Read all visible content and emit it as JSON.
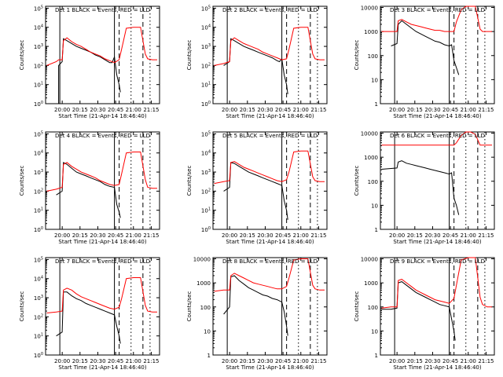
{
  "colors": {
    "events": "#000000",
    "lld": "#ff0000",
    "axes": "#000000"
  },
  "legend_text": {
    "prefix": "Det",
    "black": "BLACK = Events",
    "red": "RED = LLD"
  },
  "xlabel": "Start Time (21-Apr-14 18:46:40)",
  "chart_data": [
    {
      "type": "line",
      "title": "Det 1",
      "ylabel": "Counts/sec",
      "ylog": true,
      "ytick_style": "exp",
      "yticks": [
        0,
        1,
        2,
        3,
        4,
        5
      ],
      "ylim": [
        0,
        5.1
      ],
      "xticks": [
        "20:00",
        "20:15",
        "20:30",
        "20:45",
        "21:00",
        "21:15"
      ],
      "series": [
        {
          "name": "Events",
          "x_min": [
            -5,
            -3,
            -3,
            0,
            1,
            4,
            8,
            12,
            16,
            20,
            24,
            28,
            32,
            36,
            40,
            42,
            44,
            46,
            48,
            49
          ],
          "y_log": [
            0,
            0,
            2.0,
            2.2,
            3.4,
            3.3,
            3.15,
            3.0,
            2.9,
            2.8,
            2.7,
            2.55,
            2.45,
            2.3,
            2.15,
            2.15,
            2.45,
            1.5,
            1.0,
            0.6
          ]
        },
        {
          "name": "LLD",
          "x_min": [
            -13,
            -5,
            -3,
            0,
            1,
            4,
            8,
            12,
            16,
            20,
            24,
            28,
            32,
            36,
            40,
            44,
            48,
            50,
            54,
            60,
            66,
            70,
            72,
            76,
            80
          ],
          "y_log": [
            2.0,
            2.2,
            2.3,
            2.3,
            3.3,
            3.45,
            3.25,
            3.1,
            3.0,
            2.85,
            2.7,
            2.6,
            2.5,
            2.35,
            2.25,
            2.15,
            2.3,
            2.85,
            3.95,
            4.0,
            4.0,
            2.6,
            2.35,
            2.3,
            2.3
          ]
        }
      ]
    },
    {
      "type": "line",
      "title": "Det 2",
      "ylabel": "Counts/sec",
      "ylog": true,
      "ytick_style": "exp",
      "yticks": [
        0,
        1,
        2,
        3,
        4,
        5
      ],
      "ylim": [
        0,
        5.1
      ],
      "xticks": [
        "20:00",
        "20:15",
        "20:30",
        "20:45",
        "21:00",
        "21:15"
      ],
      "series": [
        {
          "name": "Events",
          "x_min": [
            -5,
            0,
            1,
            4,
            8,
            12,
            16,
            20,
            24,
            28,
            32,
            36,
            40,
            42,
            44,
            46,
            48,
            49
          ],
          "y_log": [
            2.0,
            2.2,
            3.4,
            3.3,
            3.15,
            3.0,
            2.9,
            2.8,
            2.7,
            2.6,
            2.5,
            2.4,
            2.25,
            2.2,
            2.35,
            1.5,
            1.0,
            0.5
          ]
        },
        {
          "name": "LLD",
          "x_min": [
            -13,
            -5,
            0,
            1,
            4,
            8,
            12,
            16,
            20,
            24,
            28,
            32,
            36,
            40,
            44,
            48,
            50,
            54,
            60,
            66,
            70,
            72,
            76,
            80
          ],
          "y_log": [
            2.0,
            2.1,
            2.2,
            3.3,
            3.45,
            3.3,
            3.15,
            3.05,
            2.95,
            2.85,
            2.7,
            2.6,
            2.5,
            2.4,
            2.3,
            2.35,
            2.85,
            3.95,
            4.0,
            4.0,
            2.6,
            2.35,
            2.3,
            2.3
          ]
        }
      ]
    },
    {
      "type": "line",
      "title": "Det 3",
      "ylabel": "Counts/sec",
      "ylog": true,
      "ytick_style": "plain",
      "yticks": [
        0,
        1,
        2,
        3,
        4
      ],
      "ylim": [
        0,
        4.05
      ],
      "xticks": [
        "20:00",
        "20:15",
        "20:30",
        "20:45",
        "21:00",
        "21:15"
      ],
      "series": [
        {
          "name": "Events",
          "x_min": [
            -5,
            0,
            1,
            4,
            8,
            12,
            16,
            20,
            24,
            28,
            32,
            36,
            40,
            44,
            46,
            48,
            50,
            52
          ],
          "y_log": [
            2.4,
            2.5,
            3.3,
            3.45,
            3.3,
            3.15,
            3.0,
            2.9,
            2.8,
            2.7,
            2.6,
            2.55,
            2.45,
            2.4,
            2.45,
            1.8,
            1.5,
            1.2
          ]
        },
        {
          "name": "LLD",
          "x_min": [
            -13,
            0,
            1,
            4,
            8,
            12,
            16,
            20,
            24,
            28,
            32,
            36,
            40,
            44,
            48,
            50,
            54,
            58,
            62,
            66,
            70,
            72,
            76,
            80
          ],
          "y_log": [
            3.0,
            3.0,
            3.45,
            3.5,
            3.4,
            3.3,
            3.25,
            3.2,
            3.15,
            3.1,
            3.05,
            3.05,
            3.0,
            3.0,
            3.0,
            3.4,
            3.9,
            4.05,
            4.05,
            4.05,
            3.1,
            3.0,
            3.0,
            3.0
          ]
        }
      ]
    },
    {
      "type": "line",
      "title": "Det 4",
      "ylabel": "Counts/sec",
      "ylog": true,
      "ytick_style": "exp",
      "yticks": [
        0,
        1,
        2,
        3,
        4,
        5
      ],
      "ylim": [
        0,
        5.1
      ],
      "xticks": [
        "20:00",
        "20:15",
        "20:30",
        "20:45",
        "21:00",
        "21:15"
      ],
      "series": [
        {
          "name": "Events",
          "x_min": [
            -5,
            0,
            1,
            4,
            8,
            12,
            16,
            20,
            24,
            28,
            32,
            36,
            40,
            44,
            46,
            48,
            49
          ],
          "y_log": [
            1.8,
            2.0,
            3.5,
            3.4,
            3.2,
            3.0,
            2.9,
            2.8,
            2.7,
            2.6,
            2.5,
            2.35,
            2.25,
            2.2,
            1.3,
            0.9,
            0.6
          ]
        },
        {
          "name": "LLD",
          "x_min": [
            -13,
            -5,
            0,
            1,
            4,
            8,
            12,
            16,
            20,
            24,
            28,
            32,
            36,
            40,
            44,
            48,
            50,
            54,
            60,
            66,
            70,
            72,
            76,
            80
          ],
          "y_log": [
            2.0,
            2.1,
            2.2,
            3.4,
            3.5,
            3.3,
            3.15,
            3.0,
            2.9,
            2.8,
            2.7,
            2.55,
            2.45,
            2.35,
            2.3,
            2.35,
            2.9,
            4.0,
            4.05,
            4.05,
            2.6,
            2.2,
            2.15,
            2.15
          ]
        }
      ]
    },
    {
      "type": "line",
      "title": "Det 5",
      "ylabel": "Counts/sec",
      "ylog": true,
      "ytick_style": "exp",
      "yticks": [
        0,
        1,
        2,
        3,
        4,
        5
      ],
      "ylim": [
        0,
        5.1
      ],
      "xticks": [
        "20:00",
        "20:15",
        "20:30",
        "20:45",
        "21:00",
        "21:15"
      ],
      "series": [
        {
          "name": "Events",
          "x_min": [
            -5,
            0,
            1,
            4,
            8,
            12,
            16,
            20,
            24,
            28,
            32,
            36,
            40,
            44,
            46,
            48,
            49
          ],
          "y_log": [
            2.0,
            2.2,
            3.5,
            3.45,
            3.3,
            3.15,
            3.0,
            2.9,
            2.8,
            2.7,
            2.6,
            2.5,
            2.4,
            2.3,
            1.5,
            1.0,
            0.5
          ]
        },
        {
          "name": "LLD",
          "x_min": [
            -13,
            -5,
            0,
            1,
            4,
            8,
            12,
            16,
            20,
            24,
            28,
            32,
            36,
            40,
            44,
            48,
            50,
            54,
            60,
            66,
            70,
            72,
            76,
            80
          ],
          "y_log": [
            2.4,
            2.5,
            2.55,
            3.5,
            3.55,
            3.4,
            3.25,
            3.15,
            3.05,
            2.95,
            2.85,
            2.75,
            2.65,
            2.55,
            2.5,
            2.6,
            3.0,
            4.05,
            4.1,
            4.1,
            2.75,
            2.55,
            2.5,
            2.5
          ]
        }
      ]
    },
    {
      "type": "line",
      "title": "Det 6",
      "ylabel": "Counts/sec",
      "ylog": true,
      "ytick_style": "plain",
      "yticks": [
        0,
        1,
        2,
        3,
        4
      ],
      "ylim": [
        0,
        4.05
      ],
      "xticks": [
        "20:00",
        "20:15",
        "20:30",
        "20:45",
        "21:00",
        "21:15"
      ],
      "series": [
        {
          "name": "Events",
          "x_min": [
            -13,
            0,
            1,
            4,
            8,
            12,
            16,
            20,
            24,
            28,
            32,
            36,
            40,
            44,
            46,
            48,
            50,
            52
          ],
          "y_log": [
            2.5,
            2.55,
            2.8,
            2.85,
            2.75,
            2.7,
            2.65,
            2.6,
            2.55,
            2.5,
            2.45,
            2.4,
            2.35,
            2.3,
            2.35,
            1.3,
            1.0,
            0.6
          ]
        },
        {
          "name": "LLD",
          "x_min": [
            -13,
            44,
            48,
            50,
            54,
            58,
            62,
            66,
            70,
            72,
            76,
            80
          ],
          "y_log": [
            3.5,
            3.5,
            3.5,
            3.6,
            3.9,
            4.05,
            4.05,
            3.95,
            3.5,
            3.5,
            3.5,
            3.5
          ]
        }
      ]
    },
    {
      "type": "line",
      "title": "Det 7",
      "ylabel": "Counts/sec",
      "ylog": true,
      "ytick_style": "exp",
      "yticks": [
        0,
        1,
        2,
        3,
        4,
        5
      ],
      "ylim": [
        0,
        5.1
      ],
      "xticks": [
        "20:00",
        "20:15",
        "20:30",
        "20:45",
        "21:00",
        "21:15"
      ],
      "series": [
        {
          "name": "Events",
          "x_min": [
            -5,
            0,
            1,
            4,
            8,
            12,
            16,
            20,
            24,
            28,
            32,
            36,
            40,
            44,
            46,
            48,
            49
          ],
          "y_log": [
            1.0,
            1.2,
            3.3,
            3.3,
            3.1,
            2.95,
            2.85,
            2.7,
            2.6,
            2.5,
            2.4,
            2.3,
            2.2,
            2.1,
            1.5,
            1.0,
            0.6
          ]
        },
        {
          "name": "LLD",
          "x_min": [
            -13,
            -5,
            0,
            1,
            4,
            8,
            12,
            16,
            20,
            24,
            28,
            32,
            36,
            40,
            44,
            48,
            50,
            54,
            60,
            66,
            70,
            72,
            76,
            80
          ],
          "y_log": [
            2.2,
            2.25,
            2.3,
            3.4,
            3.5,
            3.4,
            3.2,
            3.05,
            2.95,
            2.85,
            2.75,
            2.65,
            2.55,
            2.45,
            2.4,
            2.5,
            2.95,
            4.0,
            4.05,
            4.05,
            2.6,
            2.3,
            2.25,
            2.25
          ]
        }
      ]
    },
    {
      "type": "line",
      "title": "Det 8",
      "ylabel": "Counts/sec",
      "ylog": true,
      "ytick_style": "plain",
      "yticks": [
        0,
        1,
        2,
        3,
        4
      ],
      "ylim": [
        0,
        4.05
      ],
      "xticks": [
        "20:00",
        "20:15",
        "20:30",
        "20:45",
        "21:00",
        "21:15"
      ],
      "series": [
        {
          "name": "Events",
          "x_min": [
            -5,
            0,
            1,
            4,
            8,
            12,
            16,
            20,
            24,
            28,
            32,
            36,
            40,
            44,
            46,
            48,
            49
          ],
          "y_log": [
            1.7,
            2.0,
            3.25,
            3.3,
            3.1,
            2.95,
            2.8,
            2.7,
            2.6,
            2.5,
            2.45,
            2.35,
            2.3,
            2.2,
            1.8,
            1.2,
            0.8
          ]
        },
        {
          "name": "LLD",
          "x_min": [
            -13,
            -5,
            0,
            1,
            4,
            8,
            12,
            16,
            20,
            24,
            28,
            32,
            36,
            40,
            44,
            48,
            50,
            54,
            60,
            66,
            70,
            72,
            76,
            80
          ],
          "y_log": [
            2.65,
            2.7,
            2.7,
            3.3,
            3.4,
            3.3,
            3.2,
            3.1,
            3.0,
            2.95,
            2.9,
            2.85,
            2.8,
            2.75,
            2.75,
            2.85,
            3.2,
            3.95,
            4.0,
            4.0,
            2.9,
            2.75,
            2.7,
            2.7
          ]
        }
      ]
    },
    {
      "type": "line",
      "title": "Det 9",
      "ylabel": "Counts/sec",
      "ylog": true,
      "ytick_style": "plain",
      "yticks": [
        0,
        1,
        2,
        3,
        4
      ],
      "ylim": [
        0,
        4.05
      ],
      "xticks": [
        "20:00",
        "20:15",
        "20:30",
        "20:45",
        "21:00",
        "21:15"
      ],
      "series": [
        {
          "name": "Events",
          "x_min": [
            -13,
            -5,
            0,
            1,
            4,
            8,
            12,
            16,
            20,
            24,
            28,
            32,
            36,
            40,
            44,
            46,
            48,
            49
          ],
          "y_log": [
            1.9,
            1.9,
            1.95,
            3.0,
            3.05,
            2.9,
            2.75,
            2.6,
            2.5,
            2.4,
            2.3,
            2.2,
            2.1,
            2.05,
            2.0,
            1.5,
            1.0,
            0.6
          ]
        },
        {
          "name": "LLD",
          "x_min": [
            -13,
            -5,
            0,
            1,
            4,
            8,
            12,
            16,
            20,
            24,
            28,
            32,
            36,
            40,
            44,
            48,
            50,
            54,
            60,
            66,
            70,
            72,
            76,
            80
          ],
          "y_log": [
            1.95,
            2.0,
            2.0,
            3.1,
            3.15,
            3.0,
            2.85,
            2.7,
            2.6,
            2.5,
            2.4,
            2.3,
            2.25,
            2.2,
            2.15,
            2.35,
            2.9,
            3.95,
            4.05,
            4.05,
            2.4,
            2.1,
            2.0,
            2.0
          ]
        }
      ]
    }
  ]
}
